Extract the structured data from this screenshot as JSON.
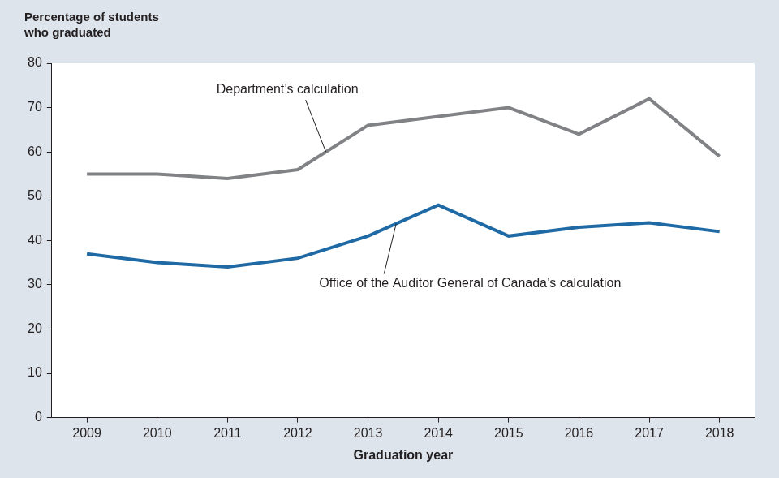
{
  "chart_data": {
    "type": "line",
    "y_label": "Percentage of students who graduated",
    "x_label": "Graduation year",
    "categories": [
      "2009",
      "2010",
      "2011",
      "2012",
      "2013",
      "2014",
      "2015",
      "2016",
      "2017",
      "2018"
    ],
    "series": [
      {
        "name": "Department’s calculation",
        "color": "#808285",
        "values": [
          55,
          55,
          54,
          56,
          66,
          68,
          70,
          64,
          72,
          59
        ]
      },
      {
        "name": "Office of the Auditor General of Canada’s calculation",
        "color": "#1f6aa5",
        "values": [
          37,
          35,
          34,
          36,
          41,
          48,
          41,
          43,
          44,
          42
        ]
      }
    ],
    "ylim": [
      0,
      80
    ],
    "yticks": [
      0,
      10,
      20,
      30,
      40,
      50,
      60,
      70,
      80
    ],
    "grid": false
  }
}
